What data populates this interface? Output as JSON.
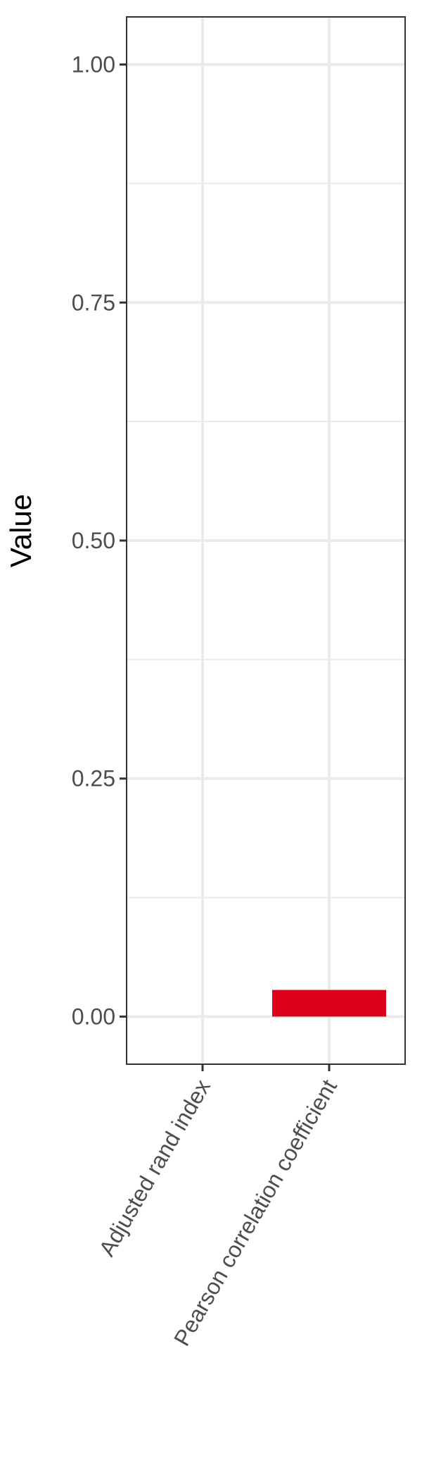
{
  "chart_data": {
    "type": "bar",
    "categories": [
      "Adjusted rand index",
      "Pearson correlation coefficient"
    ],
    "values": [
      0.0,
      0.028
    ],
    "ylabel": "Value",
    "xlabel": "",
    "ylim": [
      -0.05,
      1.05
    ],
    "yticks": [
      0.0,
      0.25,
      0.5,
      0.75,
      1.0
    ],
    "ytick_labels": [
      "0.00",
      "0.25",
      "0.50",
      "0.75",
      "1.00"
    ],
    "grid": true,
    "colors": {
      "bar": "#dc001a",
      "grid": "#ebebeb",
      "panel_border": "#333333",
      "tick_text": "#4d4d4d"
    }
  }
}
